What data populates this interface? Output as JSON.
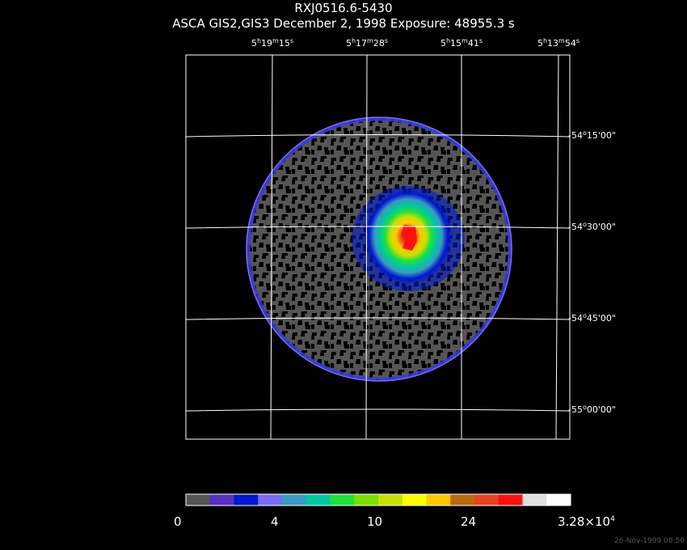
{
  "chart_data": {
    "type": "heatmap",
    "title": "RXJ0516.6-5430",
    "subtitle": "ASCA GIS2,GIS3 December 2, 1998 Exposure: 48955.3 s",
    "ra_ticks": [
      {
        "h": "5",
        "hu": "h",
        "m": "19",
        "mu": "m",
        "s": "15",
        "su": "s"
      },
      {
        "h": "5",
        "hu": "h",
        "m": "17",
        "mu": "m",
        "s": "28",
        "su": "s"
      },
      {
        "h": "5",
        "hu": "h",
        "m": "15",
        "mu": "m",
        "s": "41",
        "su": "s"
      },
      {
        "h": "5",
        "hu": "h",
        "m": "13",
        "mu": "m",
        "s": "54",
        "su": "s"
      }
    ],
    "dec_ticks": [
      {
        "d": "-54",
        "du": "o",
        "m": "15'00\""
      },
      {
        "d": "-54",
        "du": "o",
        "m": "30'00\""
      },
      {
        "d": "-54",
        "du": "o",
        "m": "45'00\""
      },
      {
        "d": "-55",
        "du": "o",
        "m": "00'00\""
      }
    ],
    "colorbar": {
      "colors": [
        "#555555",
        "#5a2fbf",
        "#0018d0",
        "#7a6cf0",
        "#3a9ac0",
        "#00c8a0",
        "#20e040",
        "#7ae000",
        "#c8e000",
        "#ffff00",
        "#ffc800",
        "#b86a10",
        "#e84020",
        "#ff1010",
        "#e0e0e0",
        "#ffffff"
      ],
      "tick_labels": [
        "0",
        "4",
        "10",
        "24"
      ],
      "max_label": {
        "base": "3.28×10",
        "exp": "4"
      }
    },
    "source_peak": {
      "ra_frac": 0.58,
      "dec_frac": 0.23
    }
  },
  "timestamp": "26-Nov-1999 08:50"
}
